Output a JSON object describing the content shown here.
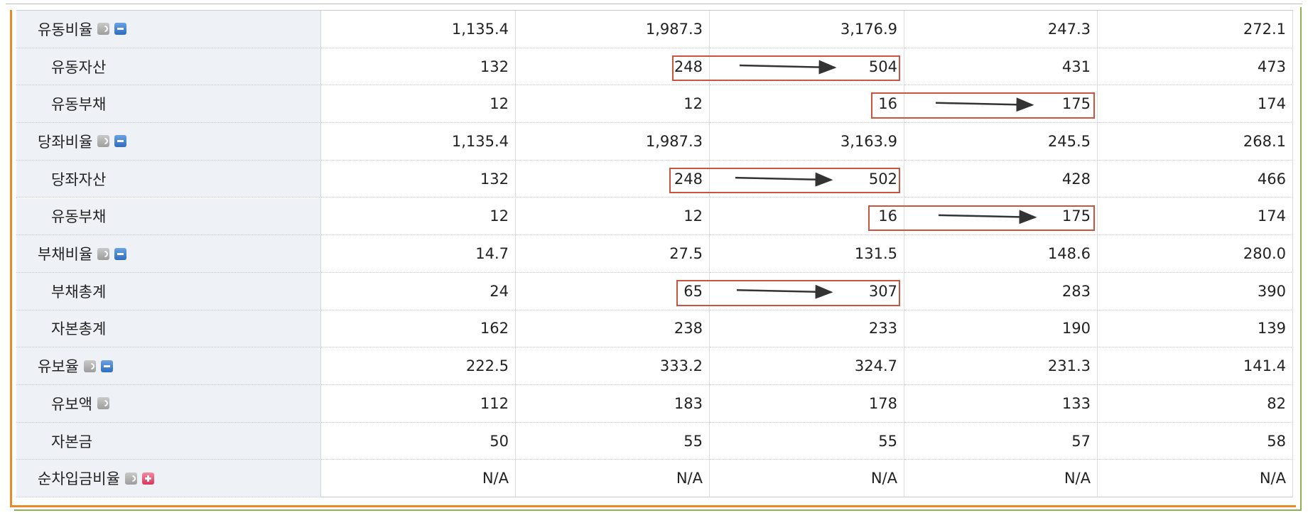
{
  "table": {
    "rows": [
      {
        "label": "유동비율",
        "values": [
          "1,135.4",
          "1,987.3",
          "3,176.9",
          "247.3",
          "272.1"
        ]
      },
      {
        "label": "유동자산",
        "values": [
          "132",
          "248",
          "504",
          "431",
          "473"
        ]
      },
      {
        "label": "유동부채",
        "values": [
          "12",
          "12",
          "16",
          "175",
          "174"
        ]
      },
      {
        "label": "당좌비율",
        "values": [
          "1,135.4",
          "1,987.3",
          "3,163.9",
          "245.5",
          "268.1"
        ]
      },
      {
        "label": "당좌자산",
        "values": [
          "132",
          "248",
          "502",
          "428",
          "466"
        ]
      },
      {
        "label": "유동부채",
        "values": [
          "12",
          "12",
          "16",
          "175",
          "174"
        ]
      },
      {
        "label": "부채비율",
        "values": [
          "14.7",
          "27.5",
          "131.5",
          "148.6",
          "280.0"
        ]
      },
      {
        "label": "부채총계",
        "values": [
          "24",
          "65",
          "307",
          "283",
          "390"
        ]
      },
      {
        "label": "자본총계",
        "values": [
          "162",
          "238",
          "233",
          "190",
          "139"
        ]
      },
      {
        "label": "유보율",
        "values": [
          "222.5",
          "333.2",
          "324.7",
          "231.3",
          "141.4"
        ]
      },
      {
        "label": "유보액",
        "values": [
          "112",
          "183",
          "178",
          "133",
          "82"
        ]
      },
      {
        "label": "자본금",
        "values": [
          "50",
          "55",
          "55",
          "57",
          "58"
        ]
      },
      {
        "label": "순차입금비율",
        "values": [
          "N/A",
          "N/A",
          "N/A",
          "N/A",
          "N/A"
        ]
      }
    ]
  }
}
